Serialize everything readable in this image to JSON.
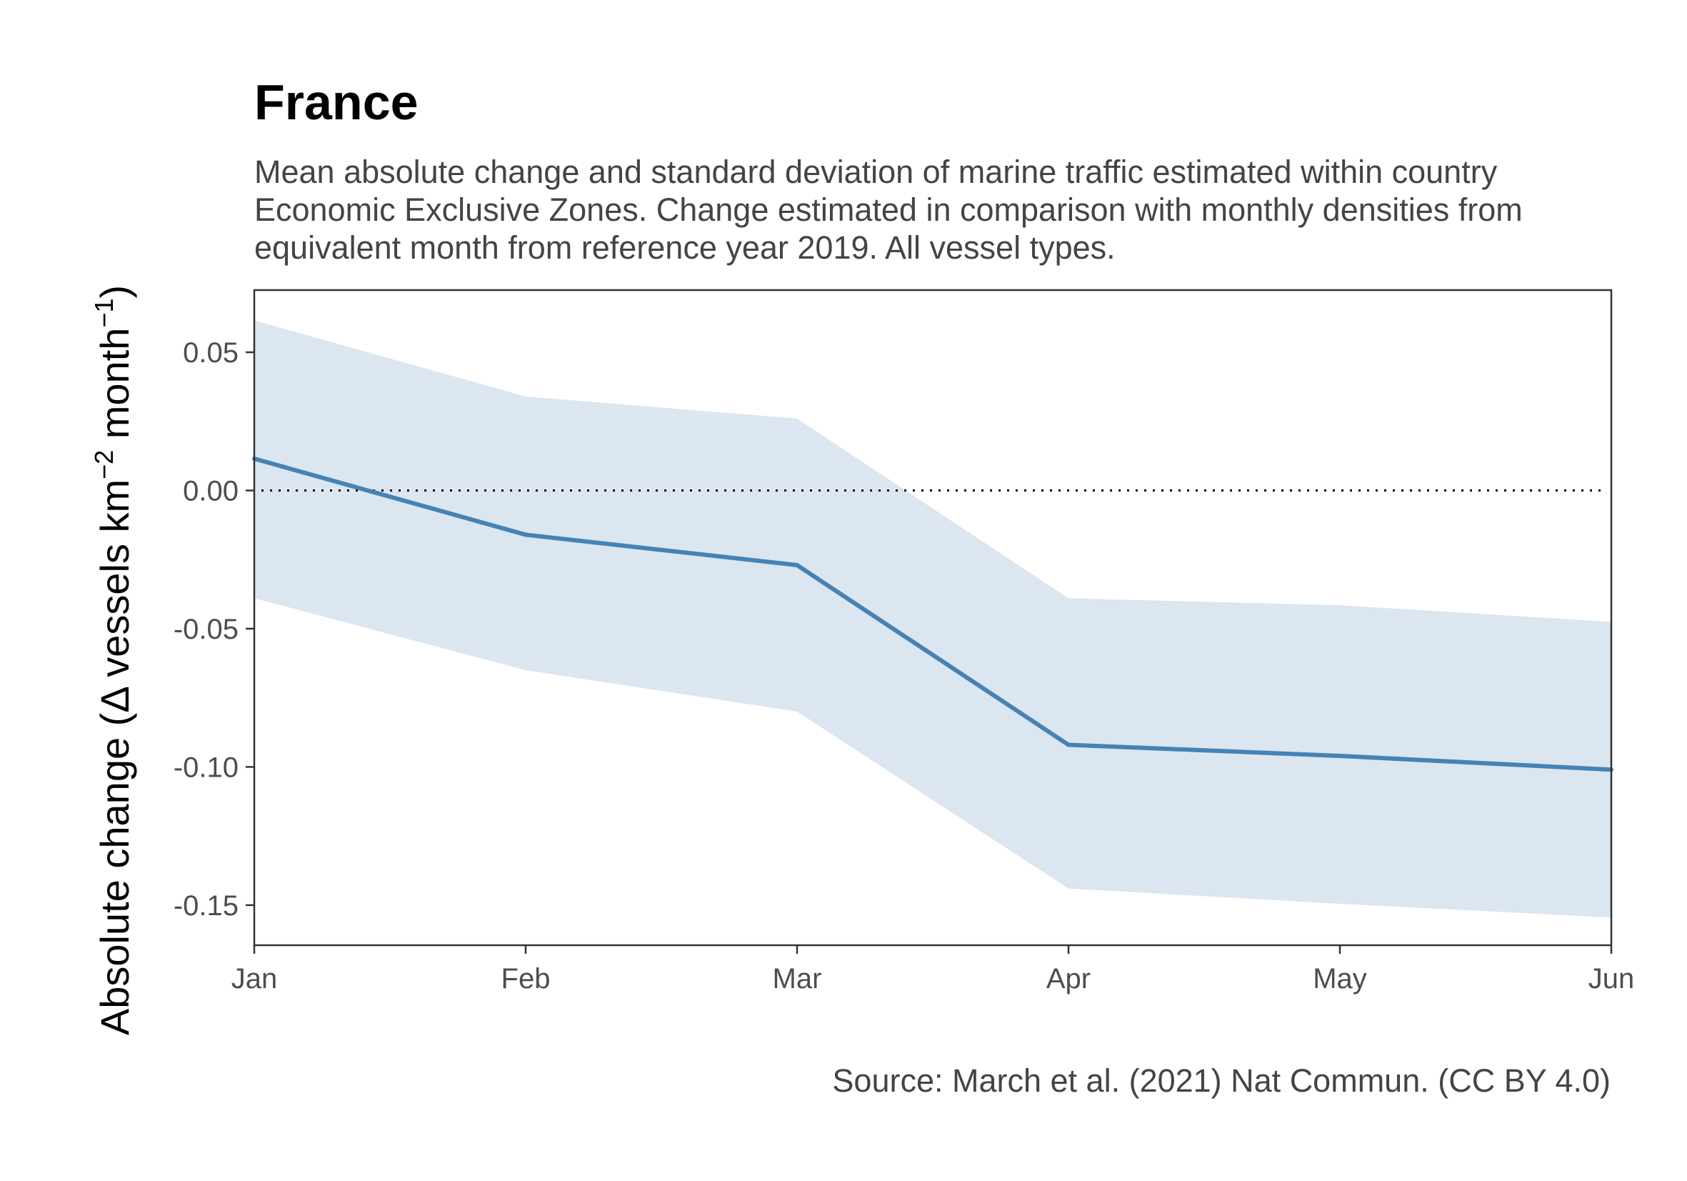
{
  "chart_data": {
    "type": "line",
    "title": "France",
    "subtitle": "Mean absolute change and standard deviation of marine traffic estimated within country Economic Exclusive Zones. Change estimated in comparison with monthly densities from equivalent month from reference year 2019. All vessel types.",
    "caption": "Source: March et al. (2021) Nat Commun. (CC BY 4.0)",
    "ylabel": {
      "prefix": "Absolute change (",
      "delta": "Δ",
      "body": " vessels km",
      "sup1": "−2",
      "mid": " month",
      "sup2": "−1",
      "suffix": ")"
    },
    "categories": [
      "Jan",
      "Feb",
      "Mar",
      "Apr",
      "May",
      "Jun"
    ],
    "mean": [
      0.0115,
      -0.016,
      -0.027,
      -0.092,
      -0.096,
      -0.101
    ],
    "upper": [
      0.0615,
      0.034,
      0.026,
      -0.039,
      -0.0415,
      -0.0475
    ],
    "lower": [
      -0.039,
      -0.065,
      -0.08,
      -0.144,
      -0.1495,
      -0.1545
    ],
    "ylim": [
      -0.1645,
      0.0725
    ],
    "yticks": [
      0.05,
      0.0,
      -0.05,
      -0.1,
      -0.15
    ],
    "ytick_labels": [
      "0.05",
      "0.00",
      "-0.05",
      "-0.10",
      "-0.15"
    ],
    "reference_line": 0,
    "colors": {
      "line": "#4682b4",
      "band": "#dbe6f1",
      "reference": "#000000",
      "frame": "#333333"
    }
  }
}
